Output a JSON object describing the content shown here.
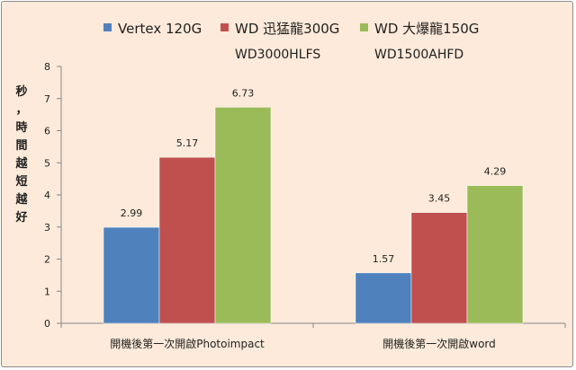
{
  "chart_data": {
    "type": "bar",
    "categories": [
      "開機後第一次開啟Photoimpact",
      "開機後第一次開啟word"
    ],
    "series": [
      {
        "name": "Vertex 120G",
        "name_line2": "",
        "color": "#4f81bd",
        "values": [
          2.99,
          1.57
        ]
      },
      {
        "name": "WD 迅猛龍300G",
        "name_line2": "WD3000HLFS",
        "color": "#c0504d",
        "values": [
          5.17,
          3.45
        ]
      },
      {
        "name": "WD 大爆龍150G",
        "name_line2": "WD1500AHFD",
        "color": "#9bbb59",
        "values": [
          6.73,
          4.29
        ]
      }
    ],
    "ylabel_chars": [
      "秒",
      "，",
      "時",
      "間",
      "越",
      "短",
      "越",
      "好"
    ],
    "ylim": [
      0,
      8
    ],
    "yticks": [
      0,
      1,
      2,
      3,
      4,
      5,
      6,
      7,
      8
    ],
    "grid": false,
    "legend_position": "top",
    "data_labels": true
  }
}
